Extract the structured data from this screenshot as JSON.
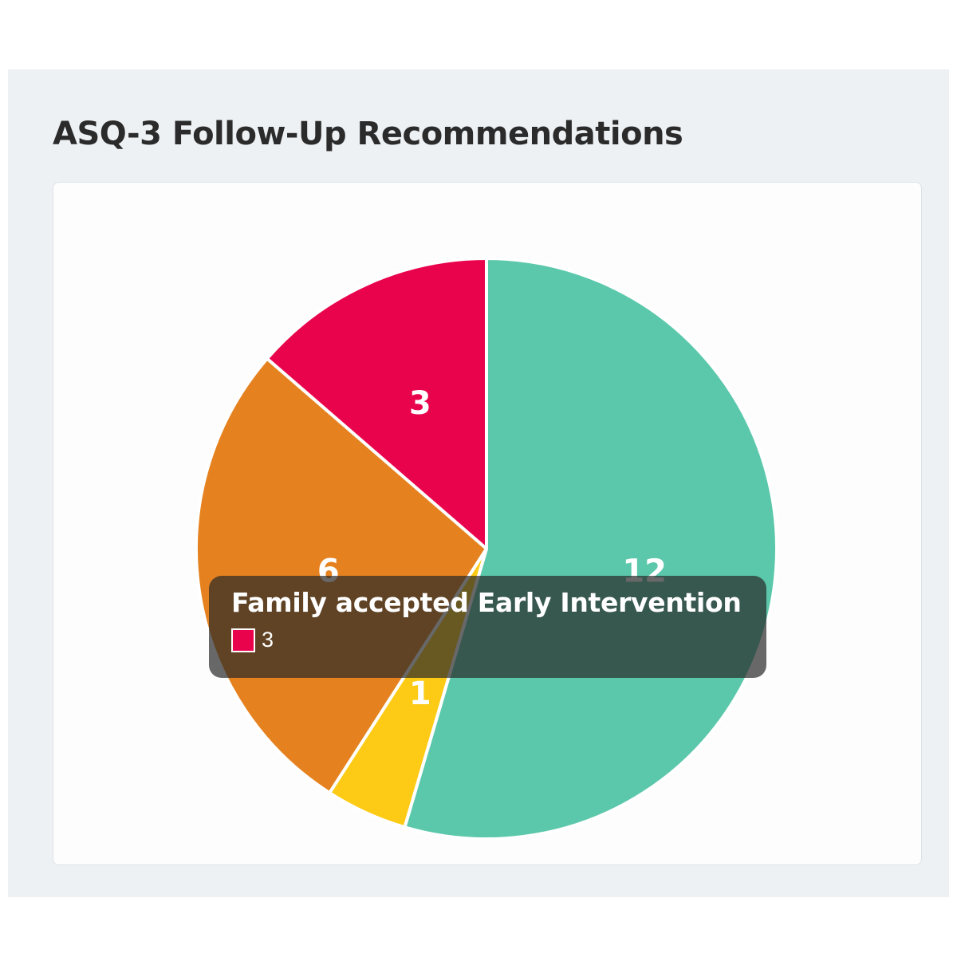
{
  "panel": {
    "title": "ASQ-3 Follow-Up Recommendations"
  },
  "chart_data": {
    "type": "pie",
    "title": "ASQ-3 Follow-Up Recommendations",
    "start_angle_deg": 0,
    "direction": "clockwise",
    "slices": [
      {
        "value": 12,
        "label": "12",
        "color": "#5cc8ab"
      },
      {
        "value": 1,
        "label": "1",
        "color": "#fdcb16"
      },
      {
        "value": 6,
        "label": "6",
        "color": "#e5821f"
      },
      {
        "value": 3,
        "label": "3",
        "color": "#e8034c"
      }
    ],
    "slice_border_color": "#ffffff",
    "data_label_color": "#ffffff"
  },
  "tooltip": {
    "title": "Family accepted Early Intervention",
    "value": "3",
    "swatch_color": "#e8034c"
  }
}
